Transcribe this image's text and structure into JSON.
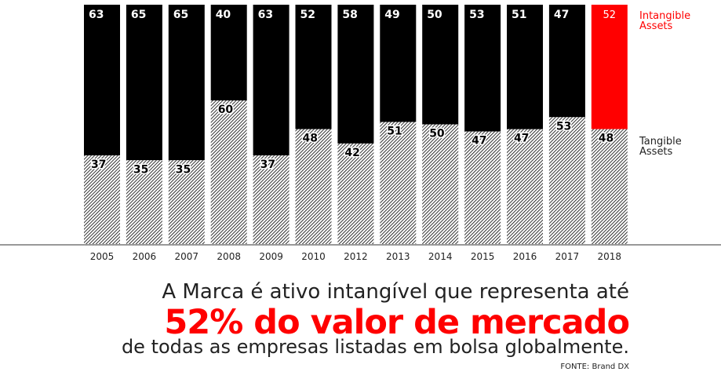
{
  "chart_data": {
    "type": "bar",
    "stacked": true,
    "normalized": true,
    "categories": [
      "2005",
      "2006",
      "2007",
      "2008",
      "2009",
      "2010",
      "2012",
      "2013",
      "2014",
      "2015",
      "2016",
      "2017",
      "2018"
    ],
    "series": [
      {
        "name": "Intangible Assets",
        "values": [
          63,
          65,
          65,
          40,
          63,
          52,
          58,
          49,
          50,
          53,
          51,
          47,
          52
        ],
        "color": "#000000",
        "highlight_last_color": "#ff0000"
      },
      {
        "name": "Tangible Assets",
        "values": [
          37,
          35,
          35,
          60,
          37,
          48,
          42,
          51,
          50,
          47,
          47,
          53,
          48
        ],
        "color": "#000000",
        "pattern": "diagonal-hatch"
      }
    ],
    "legend_placement": "right"
  },
  "caption": {
    "line1": "A Marca é ativo intangível que representa até",
    "highlight": "52% do valor de mercado",
    "line3": "de todas as empresas listadas em bolsa globalmente.",
    "source": "FONTE: Brand DX"
  },
  "colors": {
    "accent": "#ff0000",
    "text": "#222222"
  }
}
